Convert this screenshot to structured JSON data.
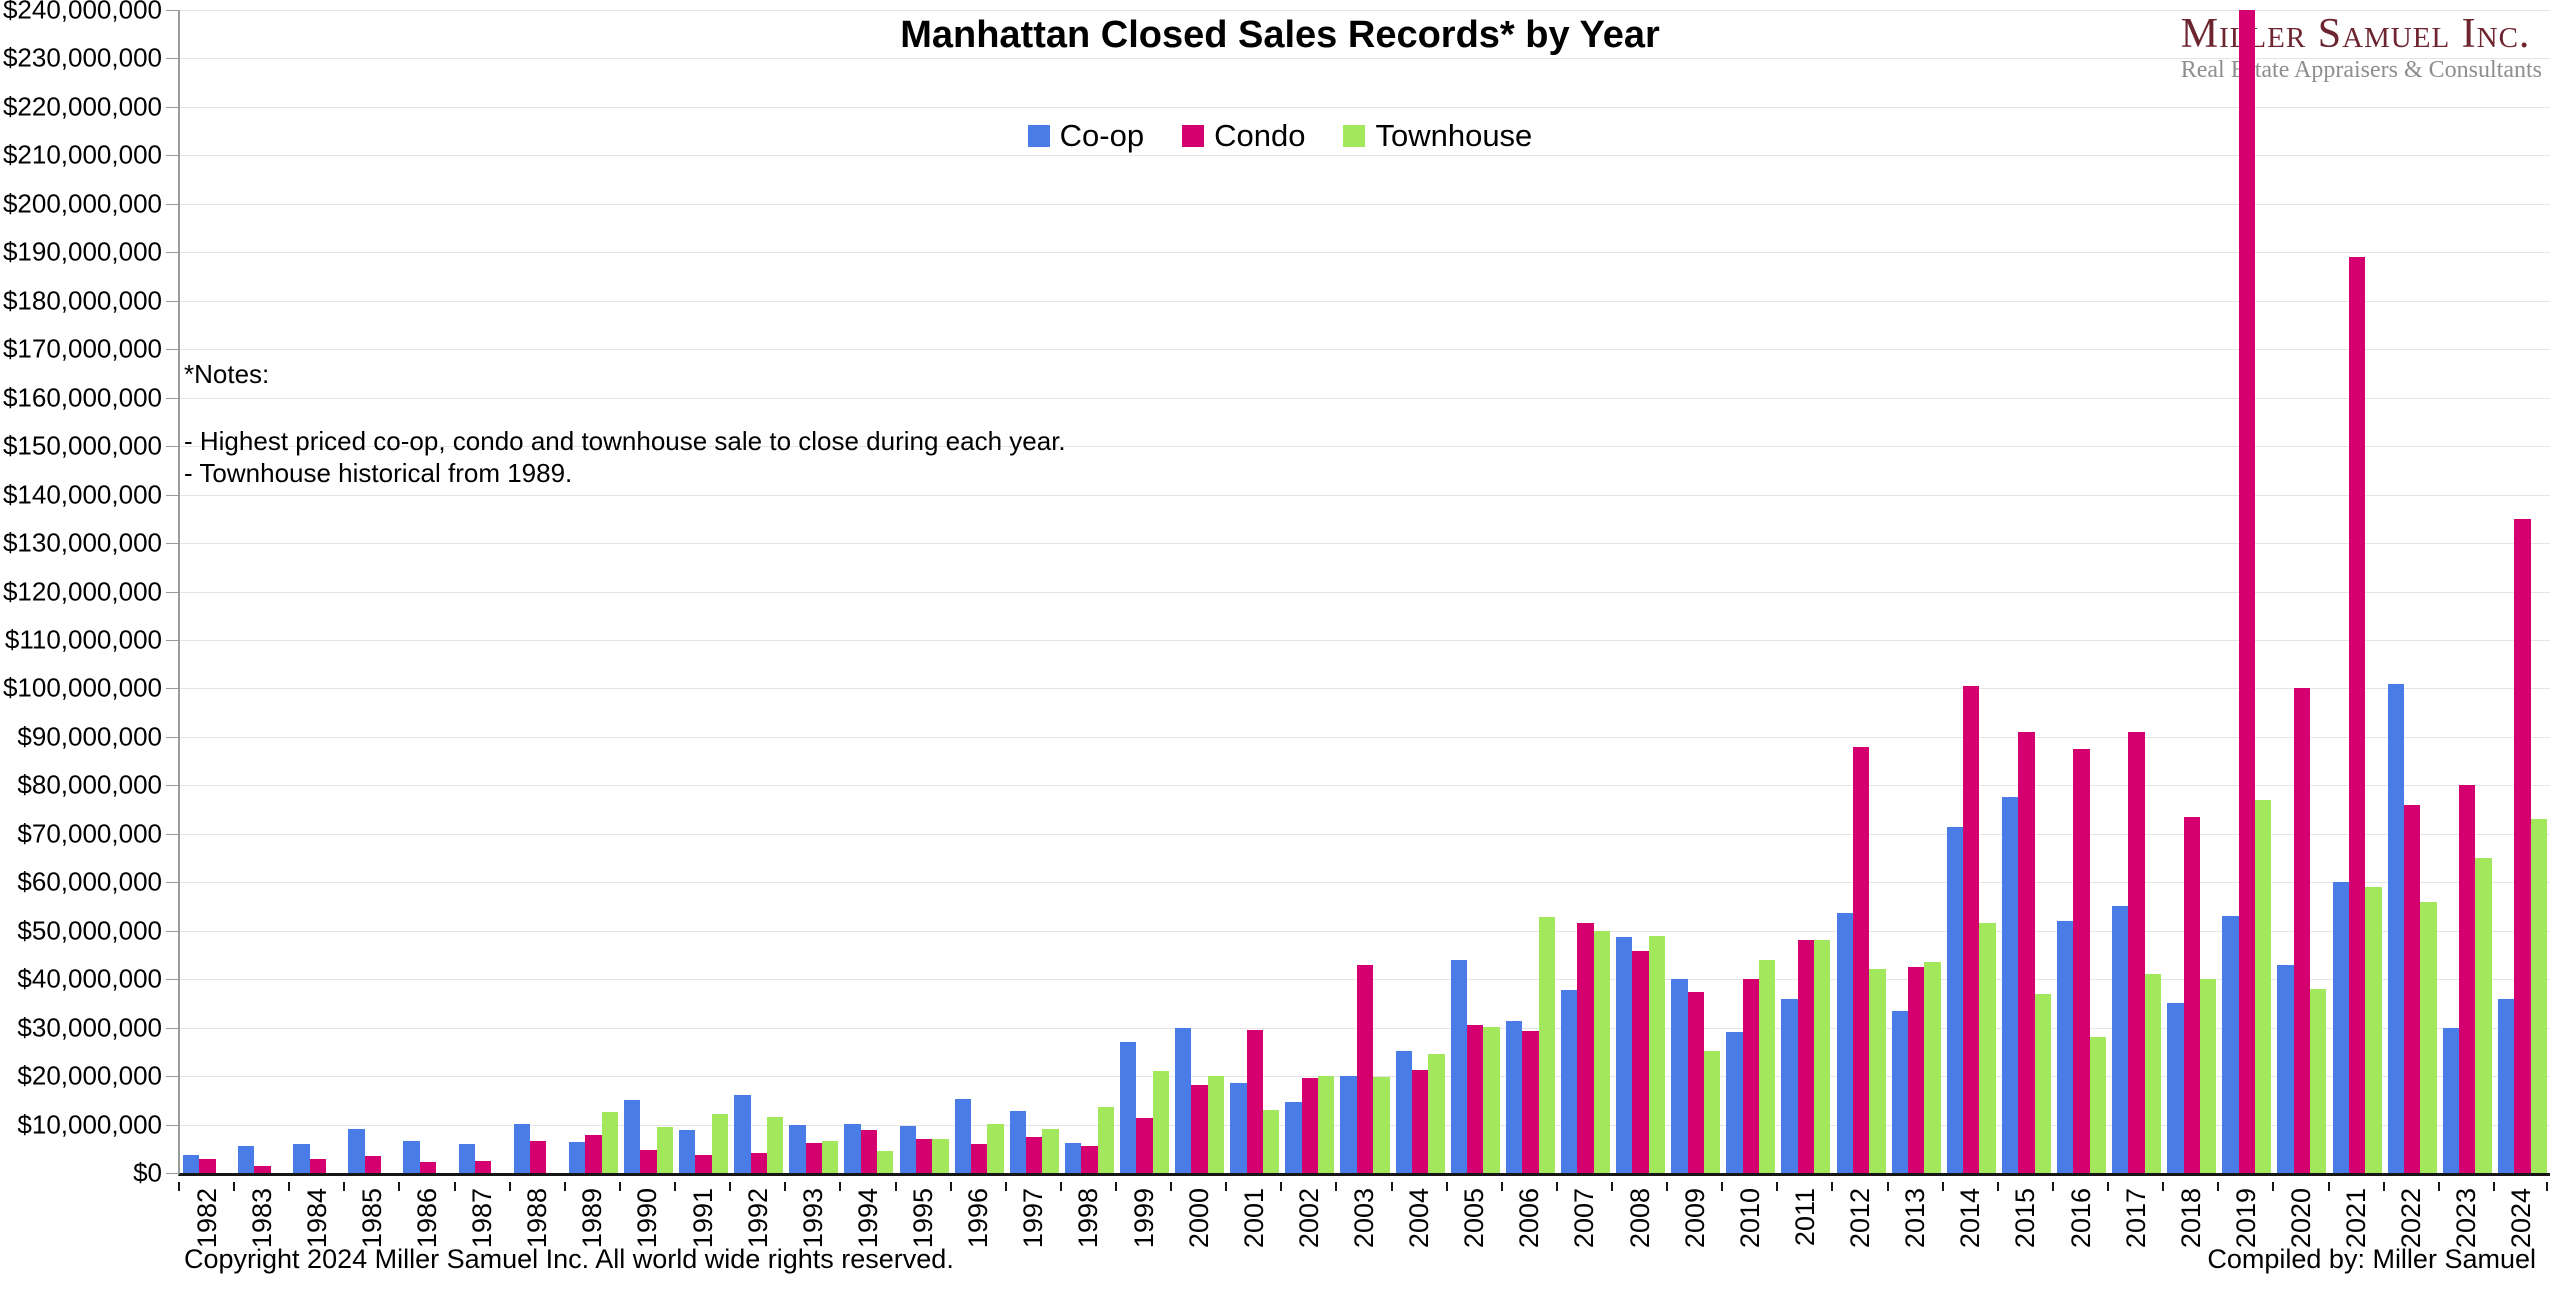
{
  "header": {
    "title": "Manhattan Closed Sales Records* by Year",
    "logo_name": "Miller Samuel Inc.",
    "logo_subtitle": "Real Estate Appraisers & Consultants"
  },
  "notes": {
    "heading": "*Notes:",
    "line1": "- Highest priced co-op, condo and townhouse sale to close during each year.",
    "line2": "- Townhouse historical from 1989."
  },
  "footer": {
    "copyright": "Copyright 2024 Miller Samuel Inc.  All world wide rights reserved.",
    "compiled_by": "Compiled by: Miller Samuel"
  },
  "chart_data": {
    "type": "bar",
    "title": "Manhattan Closed Sales Records* by Year",
    "xlabel": "",
    "ylabel": "",
    "ylim": [
      0,
      240000000
    ],
    "ytick_step": 10000000,
    "ytick_format": "$#,##0",
    "grid": true,
    "legend_position": "top-center",
    "x": [
      1982,
      1983,
      1984,
      1985,
      1986,
      1987,
      1988,
      1989,
      1990,
      1991,
      1992,
      1993,
      1994,
      1995,
      1996,
      1997,
      1998,
      1999,
      2000,
      2001,
      2002,
      2003,
      2004,
      2005,
      2006,
      2007,
      2008,
      2009,
      2010,
      2011,
      2012,
      2013,
      2014,
      2015,
      2016,
      2017,
      2018,
      2019,
      2020,
      2021,
      2022,
      2023,
      2024
    ],
    "series": [
      {
        "name": "Co-op",
        "color": "#4a7ce8",
        "values": [
          3800000,
          5600000,
          5900000,
          9000000,
          6700000,
          5900000,
          10200000,
          6300000,
          15000000,
          8900000,
          16200000,
          10000000,
          10100000,
          9600000,
          15300000,
          12900000,
          6200000,
          27000000,
          30000000,
          18600000,
          14600000,
          20100000,
          25100000,
          44000000,
          31400000,
          37800000,
          48700000,
          40000000,
          29100000,
          36000000,
          53700000,
          33500000,
          71500000,
          77500000,
          52000000,
          55000000,
          35000000,
          53000000,
          43000000,
          60000000,
          101000000,
          30000000,
          36000000
        ]
      },
      {
        "name": "Condo",
        "color": "#d40070",
        "values": [
          2800000,
          1400000,
          2800000,
          3600000,
          2300000,
          2400000,
          6700000,
          7800000,
          4700000,
          3800000,
          4100000,
          6100000,
          8900000,
          7100000,
          5900000,
          7400000,
          5600000,
          11300000,
          18200000,
          29600000,
          19600000,
          43000000,
          21200000,
          30600000,
          29300000,
          51500000,
          45900000,
          37400000,
          40000000,
          48000000,
          88000000,
          42500000,
          100500000,
          91000000,
          87500000,
          91000000,
          73500000,
          240000000,
          100000000,
          189000000,
          76000000,
          80000000,
          135000000
        ]
      },
      {
        "name": "Townhouse",
        "color": "#a3e85c",
        "values": [
          null,
          null,
          null,
          null,
          null,
          null,
          null,
          12500000,
          9400000,
          12200000,
          11600000,
          6700000,
          4500000,
          7000000,
          10100000,
          9000000,
          13600000,
          21000000,
          20100000,
          13100000,
          20000000,
          19900000,
          24600000,
          30100000,
          52800000,
          49900000,
          49000000,
          25100000,
          44000000,
          48000000,
          42000000,
          43500000,
          51500000,
          37000000,
          28000000,
          41000000,
          40000000,
          77000000,
          38000000,
          59000000,
          56000000,
          65000000,
          73000000
        ]
      }
    ]
  }
}
